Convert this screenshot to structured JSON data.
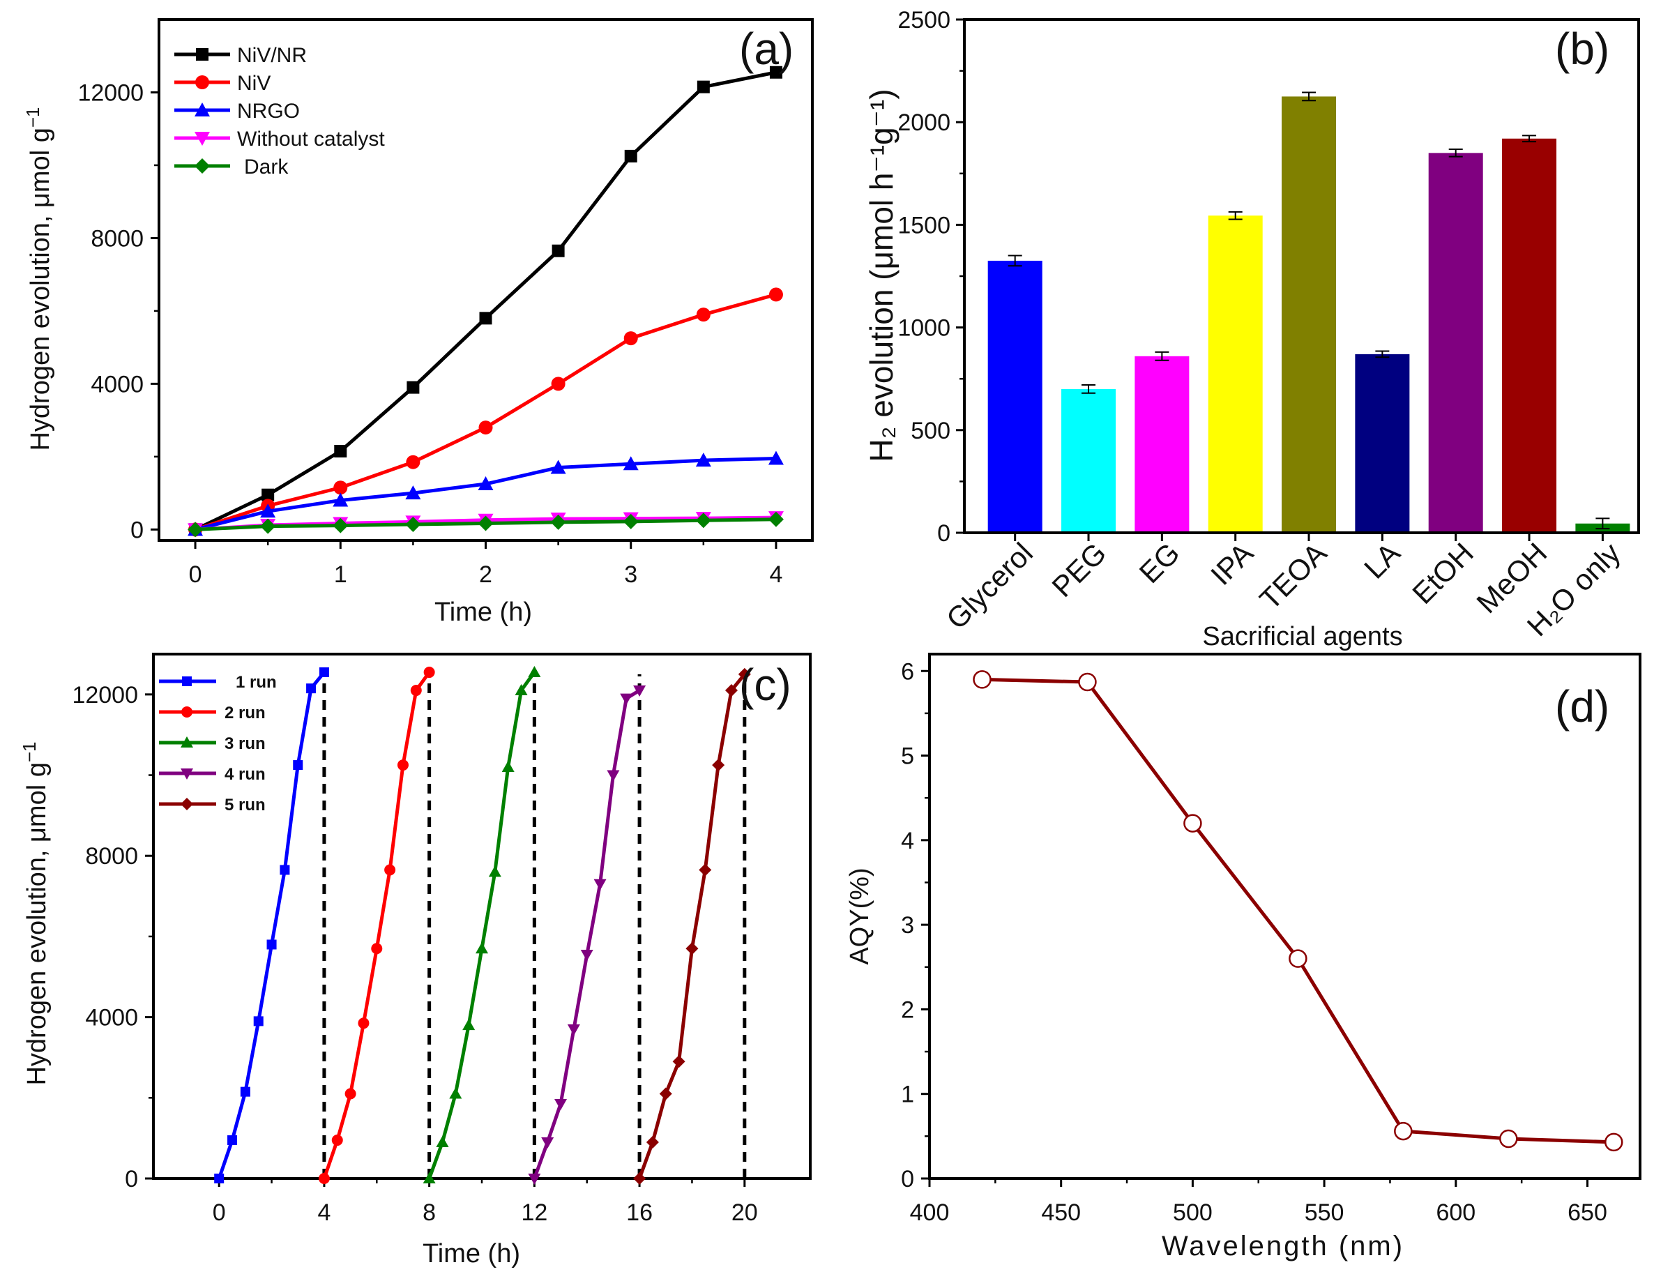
{
  "chart_data": [
    {
      "panel_label": "(a)",
      "type": "line",
      "xlabel": "Time (h)",
      "ylabel": "Hydrogen evolution, μmol g⁻¹",
      "ylabel_main": "Hydrogen evolution, μmol g",
      "ylabel_sup": "−1",
      "xlim": [
        -0.25,
        4.25
      ],
      "ylim": [
        -300,
        14000
      ],
      "xticks": [
        0,
        1,
        2,
        3,
        4
      ],
      "xtick_labels": [
        "0",
        "1",
        "2",
        "3",
        "4"
      ],
      "yticks": [
        0,
        4000,
        8000,
        12000
      ],
      "ytick_labels": [
        "0",
        "4000",
        "8000",
        "12000"
      ],
      "legend": "top-left",
      "x": [
        0,
        0.5,
        1,
        1.5,
        2,
        2.5,
        3,
        3.5,
        4
      ],
      "series": [
        {
          "name": "NiV/NR",
          "color": "#000000",
          "marker": "square",
          "values": [
            0,
            950,
            2150,
            3900,
            5800,
            7650,
            10250,
            12150,
            12550
          ]
        },
        {
          "name": "NiV",
          "color": "#ff0000",
          "marker": "circle",
          "values": [
            0,
            650,
            1150,
            1850,
            2800,
            4000,
            5250,
            5900,
            6450
          ]
        },
        {
          "name": "NRGO",
          "color": "#0000ff",
          "marker": "triangle-up",
          "values": [
            0,
            500,
            800,
            1000,
            1250,
            1700,
            1800,
            1900,
            1950
          ]
        },
        {
          "name": "Without catalyst",
          "color": "#ff00ff",
          "marker": "triangle-down",
          "values": [
            0,
            120,
            170,
            210,
            260,
            290,
            300,
            310,
            330
          ]
        },
        {
          "name": "Dark",
          "color": "#008000",
          "marker": "diamond",
          "values": [
            0,
            90,
            110,
            140,
            170,
            200,
            220,
            250,
            280
          ]
        }
      ]
    },
    {
      "panel_label": "(b)",
      "type": "bar",
      "xlabel": "Sacrificial agents",
      "ylabel": "H₂ evolution (μmol h⁻¹g⁻¹)",
      "ylim": [
        0,
        2500
      ],
      "yticks": [
        0,
        500,
        1000,
        1500,
        2000,
        2500
      ],
      "ytick_labels": [
        "0",
        "500",
        "1000",
        "1500",
        "2000",
        "2500"
      ],
      "categories": [
        "Glycerol",
        "PEG",
        "EG",
        "IPA",
        "TEOA",
        "LA",
        "EtOH",
        "MeOH",
        "H₂O only"
      ],
      "values": [
        1325,
        700,
        860,
        1545,
        2125,
        870,
        1850,
        1920,
        45
      ],
      "errors": [
        25,
        20,
        20,
        18,
        20,
        15,
        18,
        15,
        25
      ],
      "colors": [
        "#0000ff",
        "#00ffff",
        "#ff00ff",
        "#ffff00",
        "#808000",
        "#000080",
        "#800080",
        "#990000",
        "#008000"
      ]
    },
    {
      "panel_label": "(c)",
      "type": "line",
      "xlabel": "Time (h)",
      "ylabel": "Hydrogen evolution, μmol g⁻¹",
      "ylabel_main": "Hydrogen evolution, μmol g",
      "ylabel_sup": "−1",
      "xlim": [
        -2.5,
        22.5
      ],
      "ylim": [
        0,
        13000
      ],
      "xticks": [
        0,
        4,
        8,
        12,
        16,
        20
      ],
      "xtick_labels": [
        "0",
        "4",
        "8",
        "12",
        "16",
        "20"
      ],
      "yticks": [
        0,
        4000,
        8000,
        12000
      ],
      "ytick_labels": [
        "0",
        "4000",
        "8000",
        "12000"
      ],
      "legend": "top-left",
      "dashed_lines_x": [
        4,
        8,
        12,
        16,
        20
      ],
      "series": [
        {
          "name": "1 run",
          "color": "#0000ff",
          "marker": "square",
          "x": [
            0,
            0.5,
            1,
            1.5,
            2,
            2.5,
            3,
            3.5,
            4
          ],
          "values": [
            0,
            950,
            2150,
            3900,
            5800,
            7650,
            10250,
            12150,
            12550
          ]
        },
        {
          "name": "2 run",
          "color": "#ff0000",
          "marker": "circle",
          "x": [
            4,
            4.5,
            5,
            5.5,
            6,
            6.5,
            7,
            7.5,
            8
          ],
          "values": [
            0,
            950,
            2100,
            3850,
            5700,
            7650,
            10250,
            12100,
            12550
          ]
        },
        {
          "name": "3 run",
          "color": "#008000",
          "marker": "triangle-up",
          "x": [
            8,
            8.5,
            9,
            9.5,
            10,
            10.5,
            11,
            11.5,
            12
          ],
          "values": [
            0,
            900,
            2100,
            3800,
            5700,
            7600,
            10200,
            12100,
            12550
          ]
        },
        {
          "name": "4 run",
          "color": "#800080",
          "marker": "triangle-down",
          "x": [
            12,
            12.5,
            13,
            13.5,
            14,
            14.5,
            15,
            15.5,
            16
          ],
          "values": [
            0,
            900,
            1850,
            3700,
            5550,
            7300,
            10000,
            11900,
            12100
          ]
        },
        {
          "name": "5 run",
          "color": "#8b0000",
          "marker": "diamond",
          "x": [
            16,
            16.5,
            17,
            17.5,
            18,
            18.5,
            19,
            19.5,
            20
          ],
          "values": [
            0,
            900,
            2100,
            2900,
            5700,
            7650,
            10250,
            12100,
            12500
          ]
        }
      ]
    },
    {
      "panel_label": "(d)",
      "type": "line",
      "xlabel": "Wavelength (nm)",
      "ylabel": "AQY(%)",
      "xlim": [
        400,
        670
      ],
      "ylim": [
        0,
        6.2
      ],
      "xticks": [
        400,
        450,
        500,
        550,
        600,
        650
      ],
      "xtick_labels": [
        "400",
        "450",
        "500",
        "550",
        "600",
        "650"
      ],
      "yticks": [
        0,
        1,
        2,
        3,
        4,
        5,
        6
      ],
      "ytick_labels": [
        "0",
        "1",
        "2",
        "3",
        "4",
        "5",
        "6"
      ],
      "series": [
        {
          "name": "AQY",
          "color": "#8b0000",
          "marker": "open-circle",
          "x": [
            420,
            460,
            500,
            540,
            580,
            620,
            660
          ],
          "values": [
            5.9,
            5.87,
            4.2,
            2.6,
            0.56,
            0.47,
            0.43
          ]
        }
      ]
    }
  ]
}
